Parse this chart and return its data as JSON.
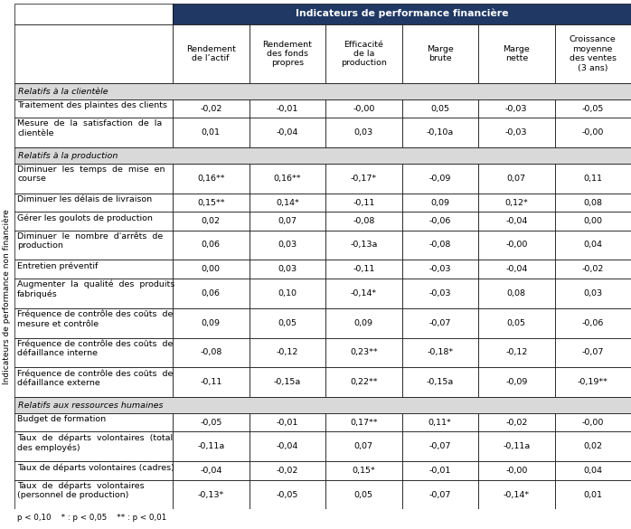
{
  "title_header": "Indicateurs de performance financière",
  "col_headers": [
    "Rendement\nde l’actif",
    "Rendement\ndes fonds\npropres",
    "Efficacité\nde la\nproduction",
    "Marge\nbrute",
    "Marge\nnette",
    "Croissance\nmoyenne\ndes ventes\n(3 ans)"
  ],
  "side_label": "Indicateurs de performance non financière",
  "sections": [
    {
      "section_title": "Relatifs à la clientèle",
      "rows": [
        {
          "label": "Traitement des plaintes des clients",
          "values": [
            "-0,02",
            "-0,01",
            "-0,00",
            "0,05",
            "-0,03",
            "-0,05"
          ],
          "multiline": false
        },
        {
          "label": "Mesure  de  la  satisfaction  de  la\nclientèle",
          "values": [
            "0,01",
            "-0,04",
            "0,03",
            "-0,10a",
            "-0,03",
            "-0,00"
          ],
          "multiline": true
        }
      ]
    },
    {
      "section_title": "Relatifs à la production",
      "rows": [
        {
          "label": "Diminuer  les  temps  de  mise  en\ncourse",
          "values": [
            "0,16**",
            "0,16**",
            "-0,17*",
            "-0,09",
            "0,07",
            "0,11"
          ],
          "multiline": true
        },
        {
          "label": "Diminuer les délais de livraison",
          "values": [
            "0,15**",
            "0,14*",
            "-0,11",
            "0,09",
            "0,12*",
            "0,08"
          ],
          "multiline": false
        },
        {
          "label": "Gérer les goulots de production",
          "values": [
            "0,02",
            "0,07",
            "-0,08",
            "-0,06",
            "-0,04",
            "0,00"
          ],
          "multiline": false
        },
        {
          "label": "Diminuer  le  nombre  d'arrêts  de\nproduction",
          "values": [
            "0,06",
            "0,03",
            "-0,13a",
            "-0,08",
            "-0,00",
            "0,04"
          ],
          "multiline": true
        },
        {
          "label": "Entretien préventif",
          "values": [
            "0,00",
            "0,03",
            "-0,11",
            "-0,03",
            "-0,04",
            "-0,02"
          ],
          "multiline": false
        },
        {
          "label": "Augmenter  la  qualité  des  produits\nfabriqués",
          "values": [
            "0,06",
            "0,10",
            "-0,14*",
            "-0,03",
            "0,08",
            "0,03"
          ],
          "multiline": true
        },
        {
          "label": "Fréquence de contrôle des coûts  de\nmesure et contrôle",
          "values": [
            "0,09",
            "0,05",
            "0,09",
            "-0,07",
            "0,05",
            "-0,06"
          ],
          "multiline": true
        },
        {
          "label": "Fréquence de contrôle des coûts  de\ndéfaillance interne",
          "values": [
            "-0,08",
            "-0,12",
            "0,23**",
            "-0,18*",
            "-0,12",
            "-0,07"
          ],
          "multiline": true
        },
        {
          "label": "Fréquence de contrôle des coûts  de\ndéfaillance externe",
          "values": [
            "-0,11",
            "-0,15a",
            "0,22**",
            "-0,15a",
            "-0,09",
            "-0,19**"
          ],
          "multiline": true
        }
      ]
    },
    {
      "section_title": "Relatifs aux ressources humaines",
      "rows": [
        {
          "label": "Budget de formation",
          "values": [
            "-0,05",
            "-0,01",
            "0,17**",
            "0,11*",
            "-0,02",
            "-0,00"
          ],
          "multiline": false
        },
        {
          "label": "Taux  de  départs  volontaires  (total\ndes employés)",
          "values": [
            "-0,11a",
            "-0,04",
            "0,07",
            "-0,07",
            "-0,11a",
            "0,02"
          ],
          "multiline": true
        },
        {
          "label": "Taux de départs volontaires (cadres)",
          "values": [
            "-0,04",
            "-0,02",
            "0,15*",
            "-0,01",
            "-0,00",
            "0,04"
          ],
          "multiline": false
        },
        {
          "label": "Taux  de  départs  volontaires\n(personnel de production)",
          "values": [
            "-0,13*",
            "-0,05",
            "0,05",
            "-0,07",
            "-0,14*",
            "0,01"
          ],
          "multiline": true
        }
      ]
    }
  ],
  "footnote_a": "p < 0,10",
  "footnote_b": "* : p < 0,05",
  "footnote_c": "** : p < 0,01",
  "header_bg": "#1f3864",
  "header_fg": "#ffffff",
  "section_bg": "#d9d9d9",
  "border_color": "#000000",
  "font_size": 6.8,
  "header_font_size": 7.8,
  "side_label_font_size": 6.5
}
